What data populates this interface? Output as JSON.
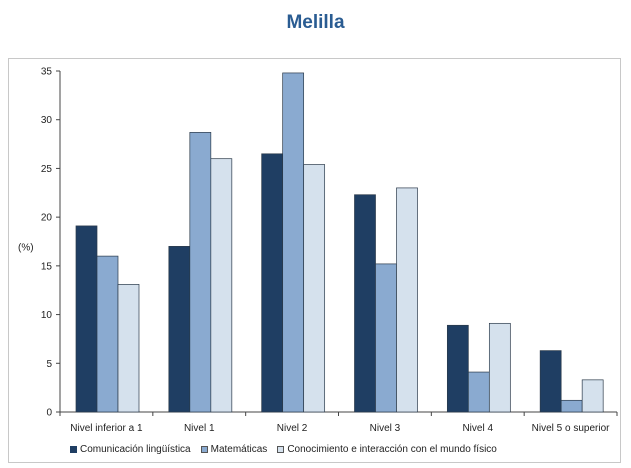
{
  "title": "Melilla",
  "chart_data": {
    "type": "bar",
    "ylabel": "(%)",
    "xlabel": "",
    "ylim": [
      0,
      35
    ],
    "yticks": [
      0,
      5,
      10,
      15,
      20,
      25,
      30,
      35
    ],
    "grid": false,
    "legend_position": "bottom",
    "categories": [
      "Nivel inferior a 1",
      "Nivel 1",
      "Nivel 2",
      "Nivel 3",
      "Nivel 4",
      "Nivel 5  o superior"
    ],
    "series": [
      {
        "name": "Comunicación lingüística",
        "color": "#1f3e63",
        "values": [
          19.1,
          17.0,
          26.5,
          22.3,
          8.9,
          6.3
        ]
      },
      {
        "name": "Matemáticas",
        "color": "#8aaad0",
        "values": [
          16.0,
          28.7,
          34.8,
          15.2,
          4.1,
          1.2
        ]
      },
      {
        "name": "Conocimiento e interacción con el mundo físico",
        "color": "#d5e1ed",
        "values": [
          13.1,
          26.0,
          25.4,
          23.0,
          9.1,
          3.3
        ]
      }
    ]
  }
}
